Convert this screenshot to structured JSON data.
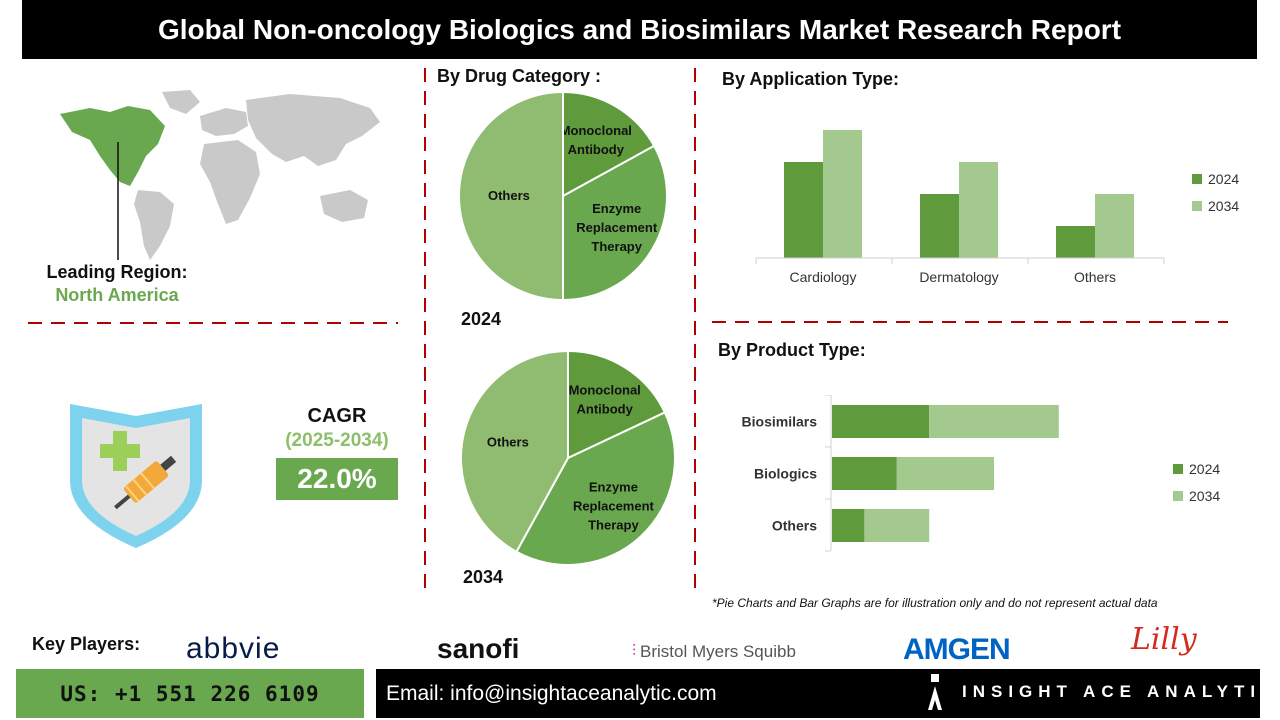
{
  "header": {
    "title": "Global Non-oncology Biologics and Biosimilars Market Research Report"
  },
  "region": {
    "label": "Leading Region:",
    "value": "North America"
  },
  "cagr": {
    "label": "CAGR",
    "period": "(2025-2034)",
    "value": "22.0%"
  },
  "colors": {
    "dark_green": "#5f9a3d",
    "light_green": "#a4c98e",
    "mid_green": "#8fbc70",
    "accent": "#6aa84f"
  },
  "chart_data": [
    {
      "type": "pie",
      "title": "By Drug Category :",
      "year": "2024",
      "slices": [
        {
          "label": "Monoclonal Antibody",
          "value": 17
        },
        {
          "label": "Enzyme Replacement Therapy",
          "value": 33
        },
        {
          "label": "Others",
          "value": 50
        }
      ]
    },
    {
      "type": "pie",
      "year": "2034",
      "slices": [
        {
          "label": "Monoclonal Antibody",
          "value": 18
        },
        {
          "label": "Enzyme Replacement Therapy",
          "value": 40
        },
        {
          "label": "Others",
          "value": 42
        }
      ]
    },
    {
      "type": "bar",
      "title": "By Application Type:",
      "categories": [
        "Cardiology",
        "Dermatology",
        "Others"
      ],
      "series": [
        {
          "name": "2024",
          "values": [
            3,
            2,
            1
          ]
        },
        {
          "name": "2034",
          "values": [
            4,
            3,
            2
          ]
        }
      ]
    },
    {
      "type": "bar",
      "orientation": "horizontal",
      "stacked": true,
      "title": "By Product Type:",
      "categories": [
        "Biosimilars",
        "Biologics",
        "Others"
      ],
      "series": [
        {
          "name": "2024",
          "values": [
            3,
            2,
            1
          ]
        },
        {
          "name": "2034",
          "values": [
            4,
            3,
            2
          ]
        }
      ]
    }
  ],
  "disclaimer": "*Pie Charts and Bar Graphs are for illustration only and do not represent actual data",
  "footer": {
    "key_players_label": "Key Players:",
    "players": [
      "abbvie",
      "sanofi",
      "Bristol Myers Squibb",
      "AMGEN",
      "Lilly"
    ],
    "phone": "US: +1 551 226 6109",
    "email": "Email: info@insightaceanalytic.com",
    "brand": "INSIGHT ACE ANALYTIC"
  }
}
